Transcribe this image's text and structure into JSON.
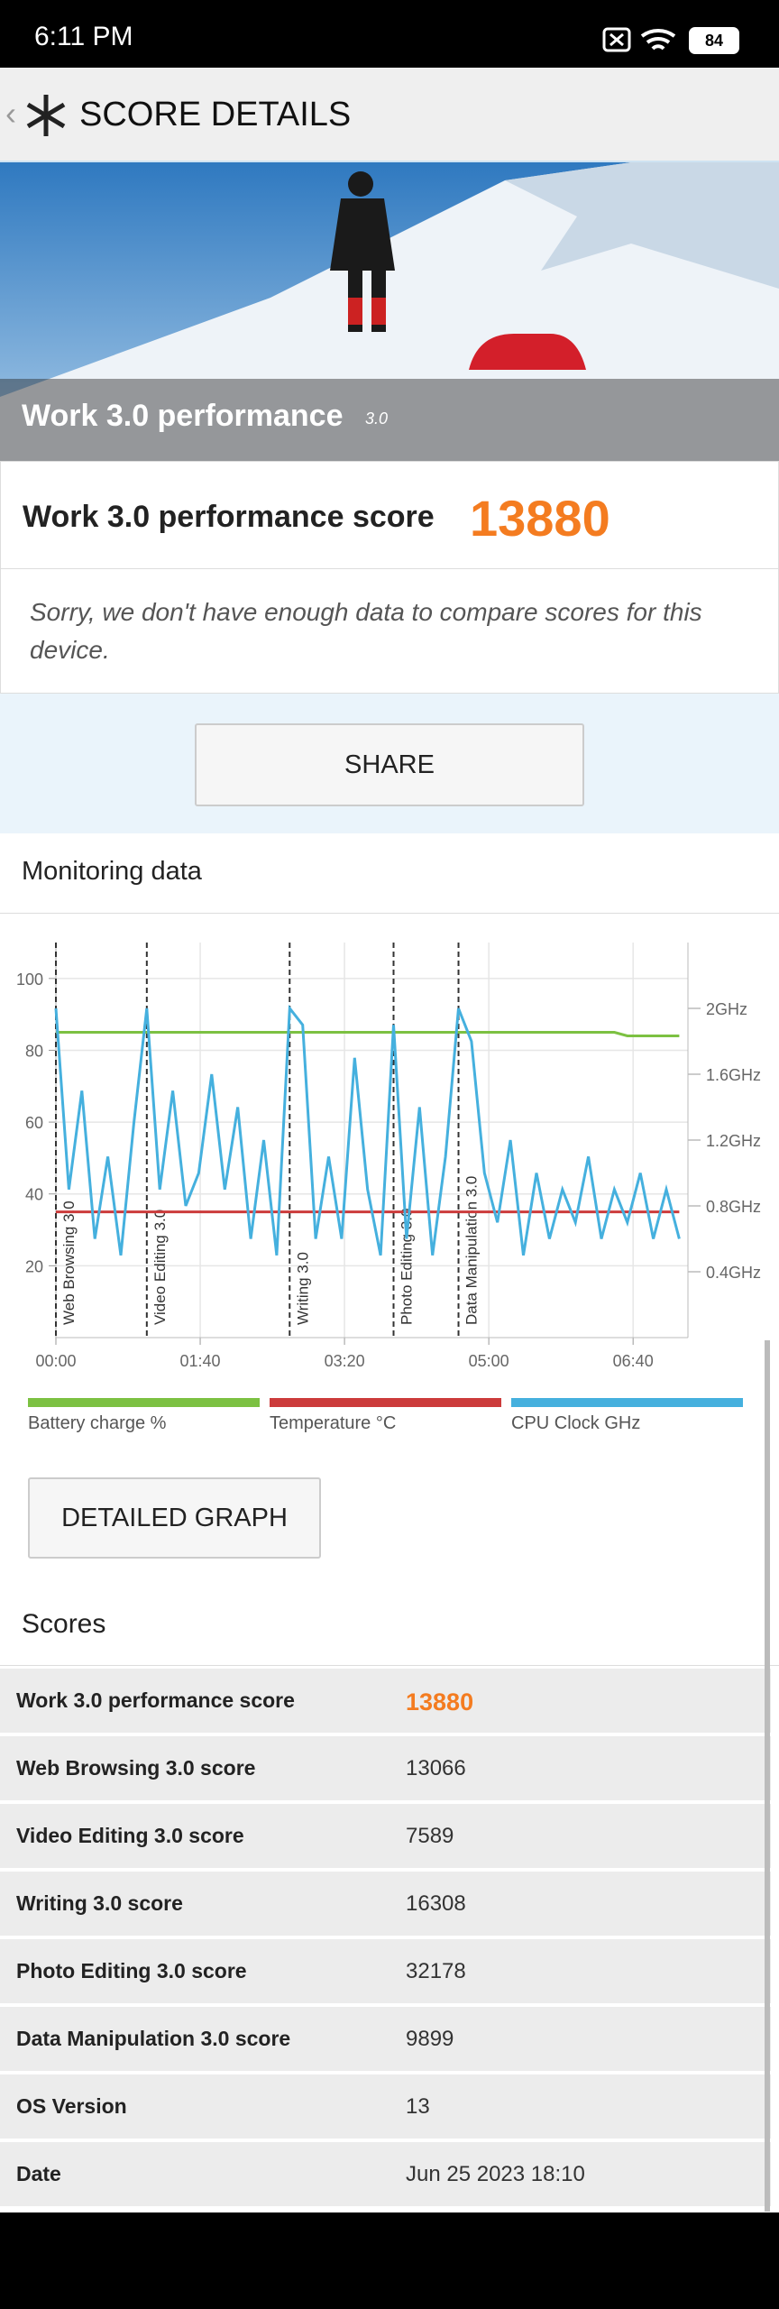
{
  "status_bar": {
    "time": "6:11 PM",
    "battery": "84"
  },
  "app_bar": {
    "title": "SCORE DETAILS"
  },
  "hero": {
    "title": "Work 3.0 performance",
    "version": "3.0"
  },
  "score": {
    "label": "Work 3.0 performance score",
    "value": 13880
  },
  "note": "Sorry, we don't have enough data to compare scores for this device.",
  "share_button": "SHARE",
  "monitoring": {
    "title": "Monitoring data",
    "chart_data": {
      "type": "line",
      "x": [
        0,
        9,
        18,
        27,
        36,
        45,
        54,
        63,
        72,
        81,
        90,
        99,
        108,
        117,
        126,
        135,
        144,
        153,
        162,
        171,
        180,
        189,
        198,
        207,
        216,
        225,
        234,
        243,
        252,
        261,
        270,
        279,
        288,
        297,
        306,
        315,
        324,
        333,
        342,
        351,
        360,
        369,
        378,
        387,
        396,
        405,
        414,
        423,
        432
      ],
      "series": [
        {
          "name": "Battery charge %",
          "color": "#7cc142",
          "values": [
            85,
            85,
            85,
            85,
            85,
            85,
            85,
            85,
            85,
            85,
            85,
            85,
            85,
            85,
            85,
            85,
            85,
            85,
            85,
            85,
            85,
            85,
            85,
            85,
            85,
            85,
            85,
            85,
            85,
            85,
            85,
            85,
            85,
            85,
            85,
            85,
            85,
            85,
            85,
            85,
            85,
            85,
            85,
            85,
            84,
            84,
            84,
            84,
            84
          ]
        },
        {
          "name": "Temperature °C",
          "color": "#cc3b3b",
          "values": [
            35,
            35,
            35,
            35,
            35,
            35,
            35,
            35,
            35,
            35,
            35,
            35,
            35,
            35,
            35,
            35,
            35,
            35,
            35,
            35,
            35,
            35,
            35,
            35,
            35,
            35,
            35,
            35,
            35,
            35,
            35,
            35,
            35,
            35,
            35,
            35,
            35,
            35,
            35,
            35,
            35,
            35,
            35,
            35,
            35,
            35,
            35,
            35,
            35
          ]
        },
        {
          "name": "CPU Clock GHz",
          "color": "#45b0de",
          "axis": "y2",
          "values": [
            2.0,
            0.9,
            1.5,
            0.6,
            1.1,
            0.5,
            1.3,
            2.0,
            0.9,
            1.5,
            0.8,
            1.0,
            1.6,
            0.9,
            1.4,
            0.6,
            1.2,
            0.5,
            2.0,
            1.9,
            0.6,
            1.1,
            0.6,
            1.7,
            0.9,
            0.5,
            1.9,
            0.6,
            1.4,
            0.5,
            1.1,
            2.0,
            1.8,
            1.0,
            0.7,
            1.2,
            0.5,
            1.0,
            0.6,
            0.9,
            0.7,
            1.1,
            0.6,
            0.9,
            0.7,
            1.0,
            0.6,
            0.9,
            0.6
          ]
        }
      ],
      "markers": [
        {
          "x": 0,
          "label": "Web Browsing 3.0"
        },
        {
          "x": 63,
          "label": "Video Editing 3.0"
        },
        {
          "x": 162,
          "label": "Writing 3.0"
        },
        {
          "x": 234,
          "label": "Photo Editing 3.0"
        },
        {
          "x": 279,
          "label": "Data Manipulation 3.0"
        }
      ],
      "xlim": [
        0,
        438
      ],
      "xticks": [
        {
          "value": 0,
          "label": "00:00"
        },
        {
          "value": 100,
          "label": "01:40"
        },
        {
          "value": 200,
          "label": "03:20"
        },
        {
          "value": 300,
          "label": "05:00"
        },
        {
          "value": 400,
          "label": "06:40"
        }
      ],
      "ylim": [
        0,
        110
      ],
      "yticks": [
        20,
        40,
        60,
        80,
        100
      ],
      "y2lim": [
        0,
        2.4
      ],
      "y2ticks": [
        {
          "value": 0.4,
          "label": "0.4GHz"
        },
        {
          "value": 0.8,
          "label": "0.8GHz"
        },
        {
          "value": 1.2,
          "label": "1.2GHz"
        },
        {
          "value": 1.6,
          "label": "1.6GHz"
        },
        {
          "value": 2,
          "label": "2GHz"
        }
      ],
      "grid": true
    }
  },
  "detailed_graph_button": "DETAILED GRAPH",
  "scores": {
    "title": "Scores",
    "rows": [
      [
        "Work 3.0 performance score",
        13880
      ],
      [
        "Web Browsing 3.0 score",
        13066
      ],
      [
        "Video Editing 3.0 score",
        7589
      ],
      [
        "Writing 3.0 score",
        16308
      ],
      [
        "Photo Editing 3.0 score",
        32178
      ],
      [
        "Data Manipulation 3.0 score",
        9899
      ],
      [
        "OS Version",
        13
      ],
      [
        "Date",
        "Jun 25 2023 18:10"
      ]
    ]
  }
}
